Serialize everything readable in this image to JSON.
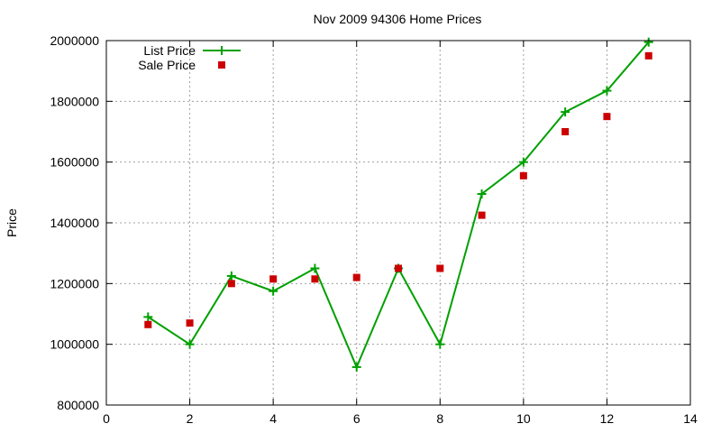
{
  "chart_data": {
    "type": "line",
    "title": "Nov 2009 94306 Home Prices",
    "xlabel": "",
    "ylabel": "Price",
    "xlim": [
      0,
      14
    ],
    "ylim": [
      800000,
      2000000
    ],
    "x_ticks": [
      0,
      2,
      4,
      6,
      8,
      10,
      12,
      14
    ],
    "y_ticks": [
      800000,
      1000000,
      1200000,
      1400000,
      1600000,
      1800000,
      2000000
    ],
    "grid": true,
    "legend_position": "top-left",
    "series": [
      {
        "name": "List Price",
        "kind": "line-with-plus-markers",
        "color": "#00a000",
        "points": [
          {
            "x": 1,
            "y": 1090000
          },
          {
            "x": 2,
            "y": 1000000
          },
          {
            "x": 3,
            "y": 1225000
          },
          {
            "x": 4,
            "y": 1175000
          },
          {
            "x": 5,
            "y": 1250000
          },
          {
            "x": 6,
            "y": 925000
          },
          {
            "x": 7,
            "y": 1250000
          },
          {
            "x": 8,
            "y": 1000000
          },
          {
            "x": 9,
            "y": 1495000
          },
          {
            "x": 10,
            "y": 1600000
          },
          {
            "x": 11,
            "y": 1765000
          },
          {
            "x": 12,
            "y": 1835000
          },
          {
            "x": 13,
            "y": 1995000
          }
        ]
      },
      {
        "name": "Sale Price",
        "kind": "square-markers",
        "color": "#cc0000",
        "points": [
          {
            "x": 1,
            "y": 1065000
          },
          {
            "x": 2,
            "y": 1070000
          },
          {
            "x": 3,
            "y": 1200000
          },
          {
            "x": 4,
            "y": 1215000
          },
          {
            "x": 5,
            "y": 1215000
          },
          {
            "x": 6,
            "y": 1220000
          },
          {
            "x": 7,
            "y": 1250000
          },
          {
            "x": 8,
            "y": 1250000
          },
          {
            "x": 9,
            "y": 1425000
          },
          {
            "x": 10,
            "y": 1555000
          },
          {
            "x": 11,
            "y": 1700000
          },
          {
            "x": 12,
            "y": 1750000
          },
          {
            "x": 13,
            "y": 1950000
          }
        ]
      }
    ]
  }
}
